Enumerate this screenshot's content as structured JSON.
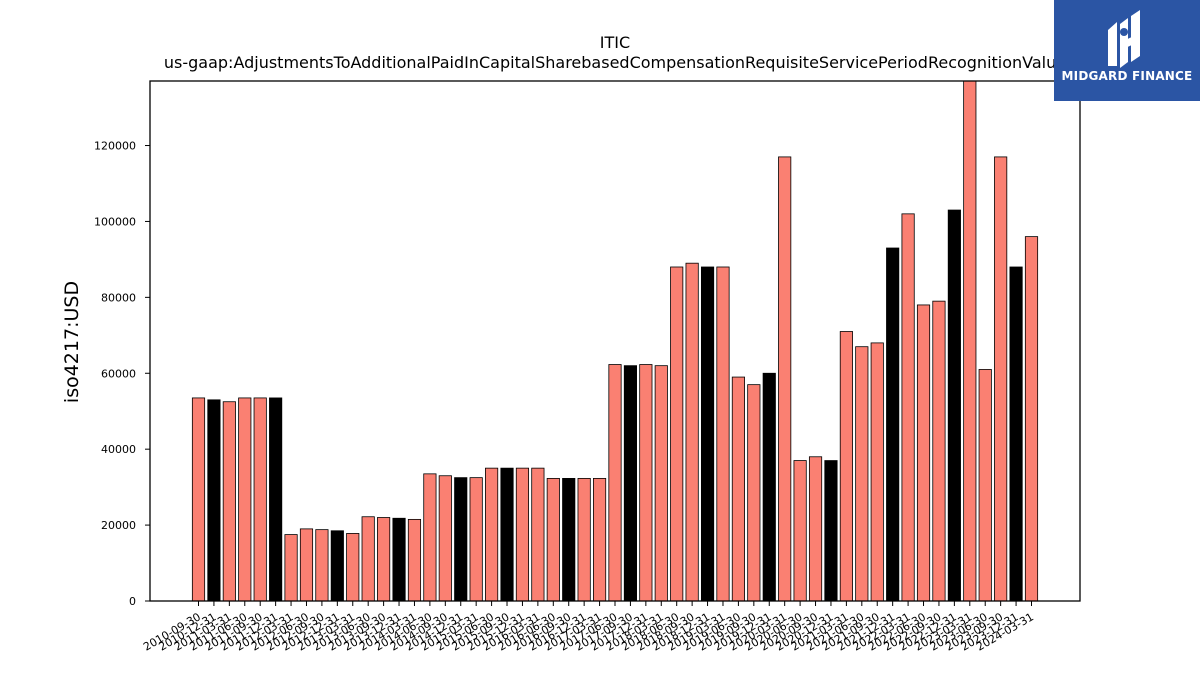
{
  "chart_data": {
    "type": "bar",
    "title": "ITIC",
    "subtitle": "us-gaap:AdjustmentsToAdditionalPaidInCapitalSharebasedCompensationRequisiteServicePeriodRecognitionValue",
    "xlabel": "",
    "ylabel": "iso4217:USD",
    "ylim": [
      0,
      137000
    ],
    "yticks": [
      0,
      20000,
      40000,
      60000,
      80000,
      100000,
      120000
    ],
    "grid": false,
    "categories": [
      "2010-09-30",
      "2010-12-31",
      "2011-03-31",
      "2011-06-30",
      "2011-09-30",
      "2011-12-31",
      "2012-03-31",
      "2012-06-30",
      "2012-09-30",
      "2012-12-31",
      "2013-03-31",
      "2013-06-30",
      "2013-09-30",
      "2013-12-31",
      "2014-03-31",
      "2014-06-30",
      "2014-09-30",
      "2014-12-31",
      "2015-03-31",
      "2015-06-30",
      "2015-09-30",
      "2015-12-31",
      "2016-03-31",
      "2016-06-30",
      "2016-09-30",
      "2016-12-31",
      "2017-03-31",
      "2017-06-30",
      "2017-09-30",
      "2017-12-31",
      "2018-03-31",
      "2018-06-30",
      "2018-09-30",
      "2018-12-31",
      "2019-03-31",
      "2019-06-30",
      "2019-09-30",
      "2019-12-31",
      "2020-03-31",
      "2020-06-30",
      "2020-09-30",
      "2020-12-31",
      "2021-03-31",
      "2021-06-30",
      "2021-09-30",
      "2021-12-31",
      "2022-03-31",
      "2022-06-30",
      "2022-09-30",
      "2022-12-31",
      "2023-03-31",
      "2023-06-30",
      "2023-09-30",
      "2023-12-31",
      "2024-03-31"
    ],
    "values": [
      53500,
      53000,
      52500,
      53500,
      53500,
      53500,
      17500,
      19000,
      18800,
      18500,
      17800,
      22200,
      22000,
      21800,
      21500,
      33500,
      33000,
      32500,
      32500,
      35000,
      35000,
      35000,
      35000,
      32300,
      32300,
      32300,
      32300,
      62300,
      62000,
      62300,
      62000,
      88000,
      89000,
      88000,
      88000,
      59000,
      57000,
      60000,
      117000,
      37000,
      38000,
      37000,
      71000,
      67000,
      68000,
      93000,
      102000,
      78000,
      79000,
      103000,
      137000,
      61000,
      117000,
      88000,
      96000
    ],
    "colors": [
      "#fa8072",
      "#000000",
      "#fa8072",
      "#fa8072",
      "#fa8072",
      "#000000",
      "#fa8072",
      "#fa8072",
      "#fa8072",
      "#000000",
      "#fa8072",
      "#fa8072",
      "#fa8072",
      "#000000",
      "#fa8072",
      "#fa8072",
      "#fa8072",
      "#000000",
      "#fa8072",
      "#fa8072",
      "#000000",
      "#fa8072",
      "#fa8072",
      "#fa8072",
      "#000000",
      "#fa8072",
      "#fa8072",
      "#fa8072",
      "#000000",
      "#fa8072",
      "#fa8072",
      "#fa8072",
      "#fa8072",
      "#000000",
      "#fa8072",
      "#fa8072",
      "#fa8072",
      "#000000",
      "#fa8072",
      "#fa8072",
      "#fa8072",
      "#000000",
      "#fa8072",
      "#fa8072",
      "#fa8072",
      "#000000",
      "#fa8072",
      "#fa8072",
      "#fa8072",
      "#000000",
      "#fa8072",
      "#fa8072",
      "#fa8072",
      "#000000",
      "#fa8072"
    ]
  },
  "logo": {
    "text": "MIDGARD FINANCE",
    "background": "#2b55a4"
  }
}
